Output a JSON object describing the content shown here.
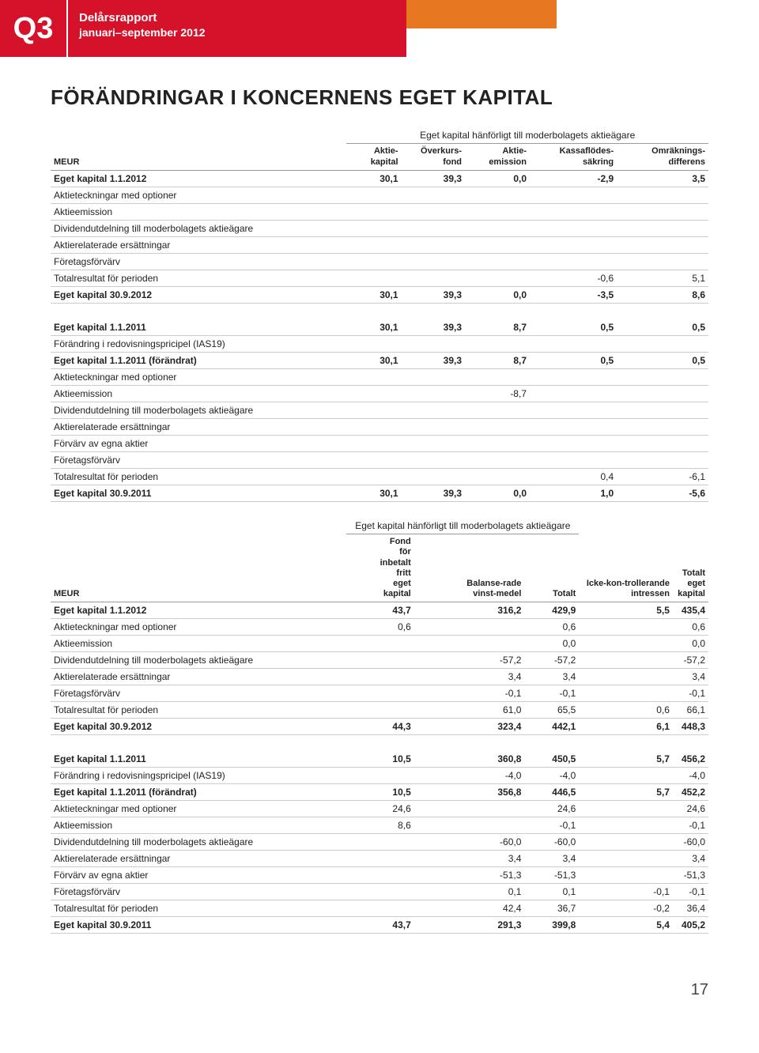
{
  "header": {
    "quarter": "Q3",
    "title_line1": "Delårsrapport",
    "title_line2": "januari–september 2012"
  },
  "page_title": "FÖRÄNDRINGAR I KONCERNENS EGET KAPITAL",
  "page_number": "17",
  "colors": {
    "primary_red": "#d6122a",
    "secondary_orange": "#e87722",
    "text": "#222222",
    "border": "#cccccc"
  },
  "table1": {
    "super_header": "Eget kapital hänförligt till moderbolagets aktieägare",
    "columns": [
      "MEUR",
      "Aktie-kapital",
      "Överkurs-fond",
      "Aktie-emission",
      "Kassaflödes-säkring",
      "Omräknings-differens"
    ],
    "rows": [
      {
        "bold": true,
        "cells": [
          "Eget kapital 1.1.2012",
          "30,1",
          "39,3",
          "0,0",
          "-2,9",
          "3,5"
        ]
      },
      {
        "cells": [
          "Aktieteckningar med optioner",
          "",
          "",
          "",
          "",
          ""
        ]
      },
      {
        "cells": [
          "Aktieemission",
          "",
          "",
          "",
          "",
          ""
        ]
      },
      {
        "cells": [
          "Dividendutdelning till moderbolagets aktieägare",
          "",
          "",
          "",
          "",
          ""
        ]
      },
      {
        "cells": [
          "Aktierelaterade ersättningar",
          "",
          "",
          "",
          "",
          ""
        ]
      },
      {
        "cells": [
          "Företagsförvärv",
          "",
          "",
          "",
          "",
          ""
        ]
      },
      {
        "cells": [
          "Totalresultat för perioden",
          "",
          "",
          "",
          "-0,6",
          "5,1"
        ]
      },
      {
        "bold": true,
        "cells": [
          "Eget kapital 30.9.2012",
          "30,1",
          "39,3",
          "0,0",
          "-3,5",
          "8,6"
        ]
      },
      {
        "gap": true
      },
      {
        "bold": true,
        "cells": [
          "Eget kapital 1.1.2011",
          "30,1",
          "39,3",
          "8,7",
          "0,5",
          "0,5"
        ]
      },
      {
        "cells": [
          "Förändring i redovisningspricipel (IAS19)",
          "",
          "",
          "",
          "",
          ""
        ]
      },
      {
        "bold": true,
        "cells": [
          "Eget kapital 1.1.2011 (förändrat)",
          "30,1",
          "39,3",
          "8,7",
          "0,5",
          "0,5"
        ]
      },
      {
        "cells": [
          "Aktieteckningar med optioner",
          "",
          "",
          "",
          "",
          ""
        ]
      },
      {
        "cells": [
          "Aktieemission",
          "",
          "",
          "-8,7",
          "",
          ""
        ]
      },
      {
        "cells": [
          "Dividendutdelning till moderbolagets aktieägare",
          "",
          "",
          "",
          "",
          ""
        ]
      },
      {
        "cells": [
          "Aktierelaterade ersättningar",
          "",
          "",
          "",
          "",
          ""
        ]
      },
      {
        "cells": [
          "Förvärv av egna aktier",
          "",
          "",
          "",
          "",
          ""
        ]
      },
      {
        "cells": [
          "Företagsförvärv",
          "",
          "",
          "",
          "",
          ""
        ]
      },
      {
        "cells": [
          "Totalresultat för perioden",
          "",
          "",
          "",
          "0,4",
          "-6,1"
        ]
      },
      {
        "bold": true,
        "cells": [
          "Eget kapital 30.9.2011",
          "30,1",
          "39,3",
          "0,0",
          "1,0",
          "-5,6"
        ]
      }
    ]
  },
  "table2": {
    "super_header": "Eget kapital hänförligt till moderbolagets aktieägare",
    "columns": [
      "MEUR",
      "Fond för inbetalt fritt eget kapital",
      "Balanse-rade vinst-medel",
      "Totalt",
      "Icke-kon-trollerande intressen",
      "Totalt eget kapital"
    ],
    "rows": [
      {
        "bold": true,
        "cells": [
          "Eget kapital 1.1.2012",
          "43,7",
          "316,2",
          "429,9",
          "5,5",
          "435,4"
        ]
      },
      {
        "cells": [
          "Aktieteckningar med optioner",
          "0,6",
          "",
          "0,6",
          "",
          "0,6"
        ]
      },
      {
        "cells": [
          "Aktieemission",
          "",
          "",
          "0,0",
          "",
          "0,0"
        ]
      },
      {
        "cells": [
          "Dividendutdelning till moderbolagets aktieägare",
          "",
          "-57,2",
          "-57,2",
          "",
          "-57,2"
        ]
      },
      {
        "cells": [
          "Aktierelaterade ersättningar",
          "",
          "3,4",
          "3,4",
          "",
          "3,4"
        ]
      },
      {
        "cells": [
          "Företagsförvärv",
          "",
          "-0,1",
          "-0,1",
          "",
          "-0,1"
        ]
      },
      {
        "cells": [
          "Totalresultat för perioden",
          "",
          "61,0",
          "65,5",
          "0,6",
          "66,1"
        ]
      },
      {
        "bold": true,
        "cells": [
          "Eget kapital 30.9.2012",
          "44,3",
          "323,4",
          "442,1",
          "6,1",
          "448,3"
        ]
      },
      {
        "gap": true
      },
      {
        "bold": true,
        "cells": [
          "Eget kapital 1.1.2011",
          "10,5",
          "360,8",
          "450,5",
          "5,7",
          "456,2"
        ]
      },
      {
        "cells": [
          "Förändring i redovisningspricipel (IAS19)",
          "",
          "-4,0",
          "-4,0",
          "",
          "-4,0"
        ]
      },
      {
        "bold": true,
        "cells": [
          "Eget kapital 1.1.2011 (förändrat)",
          "10,5",
          "356,8",
          "446,5",
          "5,7",
          "452,2"
        ]
      },
      {
        "cells": [
          "Aktieteckningar med optioner",
          "24,6",
          "",
          "24,6",
          "",
          "24,6"
        ]
      },
      {
        "cells": [
          "Aktieemission",
          "8,6",
          "",
          "-0,1",
          "",
          "-0,1"
        ]
      },
      {
        "cells": [
          "Dividendutdelning till moderbolagets aktieägare",
          "",
          "-60,0",
          "-60,0",
          "",
          "-60,0"
        ]
      },
      {
        "cells": [
          "Aktierelaterade ersättningar",
          "",
          "3,4",
          "3,4",
          "",
          "3,4"
        ]
      },
      {
        "cells": [
          "Förvärv av egna aktier",
          "",
          "-51,3",
          "-51,3",
          "",
          "-51,3"
        ]
      },
      {
        "cells": [
          "Företagsförvärv",
          "",
          "0,1",
          "0,1",
          "-0,1",
          "-0,1"
        ]
      },
      {
        "cells": [
          "Totalresultat för perioden",
          "",
          "42,4",
          "36,7",
          "-0,2",
          "36,4"
        ]
      },
      {
        "bold": true,
        "cells": [
          "Eget kapital 30.9.2011",
          "43,7",
          "291,3",
          "399,8",
          "5,4",
          "405,2"
        ]
      }
    ]
  }
}
